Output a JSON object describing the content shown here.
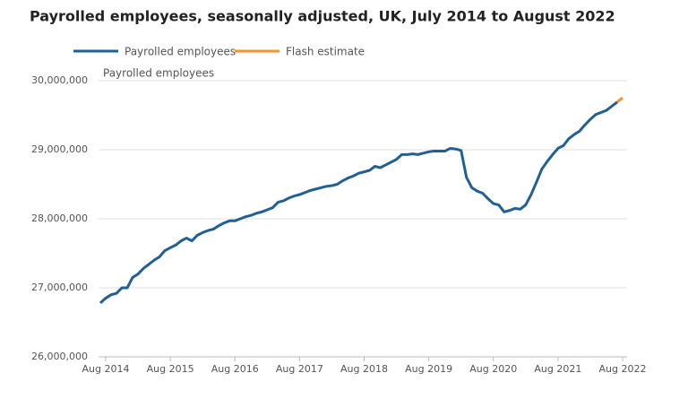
{
  "chart_data": {
    "type": "line",
    "title": "Payrolled employees, seasonally adjusted, UK, July 2014 to August 2022",
    "y_label": "Payrolled employees",
    "categories": [
      null,
      "Aug 2014",
      null,
      null,
      null,
      null,
      null,
      null,
      null,
      null,
      null,
      null,
      null,
      "Aug 2015",
      null,
      null,
      null,
      null,
      null,
      null,
      null,
      null,
      null,
      null,
      null,
      "Aug 2016",
      null,
      null,
      null,
      null,
      null,
      null,
      null,
      null,
      null,
      null,
      null,
      "Aug 2017",
      null,
      null,
      null,
      null,
      null,
      null,
      null,
      null,
      null,
      null,
      null,
      "Aug 2018",
      null,
      null,
      null,
      null,
      null,
      null,
      null,
      null,
      null,
      null,
      null,
      "Aug 2019",
      null,
      null,
      null,
      null,
      null,
      null,
      null,
      null,
      null,
      null,
      null,
      "Aug 2020",
      null,
      null,
      null,
      null,
      null,
      null,
      null,
      null,
      null,
      null,
      null,
      "Aug 2021",
      null,
      null,
      null,
      null,
      null,
      null,
      null,
      null,
      null,
      null,
      null,
      "Aug 2022"
    ],
    "series": [
      {
        "name": "Payrolled employees",
        "color": "#206095",
        "values": [
          26780000,
          26850000,
          26900000,
          26920000,
          27000000,
          27000000,
          27150000,
          27200000,
          27280000,
          27340000,
          27400000,
          27450000,
          27540000,
          27580000,
          27620000,
          27680000,
          27720000,
          27680000,
          27760000,
          27800000,
          27830000,
          27850000,
          27900000,
          27940000,
          27970000,
          27970000,
          28000000,
          28030000,
          28050000,
          28080000,
          28100000,
          28130000,
          28160000,
          28240000,
          28260000,
          28300000,
          28330000,
          28350000,
          28380000,
          28410000,
          28430000,
          28450000,
          28470000,
          28480000,
          28500000,
          28550000,
          28590000,
          28620000,
          28660000,
          28680000,
          28700000,
          28760000,
          28740000,
          28780000,
          28820000,
          28860000,
          28930000,
          28930000,
          28940000,
          28930000,
          28950000,
          28970000,
          28980000,
          28980000,
          28980000,
          29020000,
          29010000,
          28990000,
          28600000,
          28450000,
          28400000,
          28370000,
          28290000,
          28220000,
          28200000,
          28100000,
          28120000,
          28150000,
          28140000,
          28200000,
          28350000,
          28530000,
          28720000,
          28830000,
          28930000,
          29020000,
          29060000,
          29160000,
          29220000,
          29270000,
          29360000,
          29440000,
          29510000,
          29540000,
          29570000,
          29630000,
          29690000,
          null
        ]
      },
      {
        "name": "Flash estimate",
        "color": "#f39431",
        "values": [
          null,
          null,
          null,
          null,
          null,
          null,
          null,
          null,
          null,
          null,
          null,
          null,
          null,
          null,
          null,
          null,
          null,
          null,
          null,
          null,
          null,
          null,
          null,
          null,
          null,
          null,
          null,
          null,
          null,
          null,
          null,
          null,
          null,
          null,
          null,
          null,
          null,
          null,
          null,
          null,
          null,
          null,
          null,
          null,
          null,
          null,
          null,
          null,
          null,
          null,
          null,
          null,
          null,
          null,
          null,
          null,
          null,
          null,
          null,
          null,
          null,
          null,
          null,
          null,
          null,
          null,
          null,
          null,
          null,
          null,
          null,
          null,
          null,
          null,
          null,
          null,
          null,
          null,
          null,
          null,
          null,
          null,
          null,
          null,
          null,
          null,
          null,
          null,
          null,
          null,
          null,
          null,
          null,
          null,
          null,
          null,
          29690000,
          29750000
        ]
      }
    ],
    "ylim": [
      26000000,
      30000000
    ],
    "yticks": [
      {
        "value": 26000000,
        "label": "26,000,000"
      },
      {
        "value": 27000000,
        "label": "27,000,000"
      },
      {
        "value": 28000000,
        "label": "28,000,000"
      },
      {
        "value": 29000000,
        "label": "29,000,000"
      },
      {
        "value": 30000000,
        "label": "30,000,000"
      }
    ],
    "grid": true
  }
}
